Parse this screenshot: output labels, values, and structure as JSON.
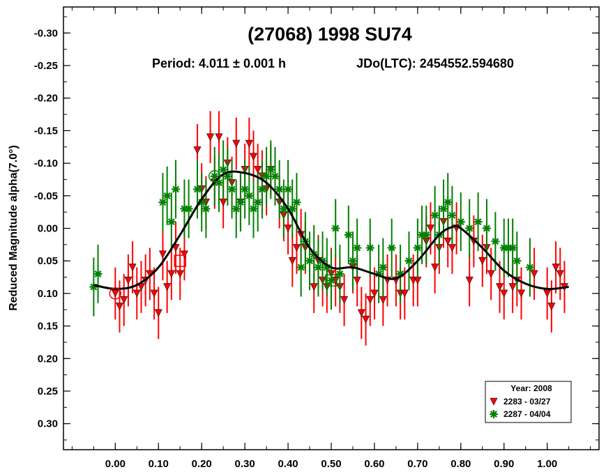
{
  "chart_data": {
    "type": "scatter",
    "title": "(27068) 1998 SU74",
    "subtitle_period": "Period: 4.011 ± 0.001 h",
    "subtitle_epoch": "JDo(LTC): 2454552.594680",
    "xlabel": "",
    "ylabel": "Reduced Magnitude alpha(7.0°)",
    "xlim": [
      -0.12,
      1.12
    ],
    "ylim": [
      0.34,
      -0.34
    ],
    "y_inverted": true,
    "x_ticks": [
      0.0,
      0.1,
      0.2,
      0.3,
      0.4,
      0.5,
      0.6,
      0.7,
      0.8,
      0.9,
      1.0
    ],
    "x_tick_labels": [
      "0.00",
      "0.10",
      "0.20",
      "0.30",
      "0.40",
      "0.50",
      "0.60",
      "0.70",
      "0.80",
      "0.90",
      "1.00"
    ],
    "y_ticks": [
      -0.3,
      -0.25,
      -0.2,
      -0.15,
      -0.1,
      -0.05,
      0.0,
      0.05,
      0.1,
      0.15,
      0.2,
      0.25,
      0.3
    ],
    "y_tick_labels": [
      "-0.30",
      "-0.25",
      "-0.20",
      "-0.15",
      "-0.10",
      "-0.05",
      "0.00",
      "0.05",
      "0.10",
      "0.15",
      "0.20",
      "0.25",
      "0.30"
    ],
    "grid": false,
    "legend": {
      "placement": "bottom-right",
      "title": "Year: 2008",
      "entries": [
        "2283 - 03/27",
        "2287 - 04/04"
      ]
    },
    "series": [
      {
        "name": "2283 - 03/27",
        "marker": "triangle-down",
        "color": "#ff0000",
        "err": 0.04,
        "points": [
          [
            0.0,
            0.1
          ],
          [
            0.01,
            0.12
          ],
          [
            0.02,
            0.11
          ],
          [
            0.03,
            0.08
          ],
          [
            0.04,
            0.06
          ],
          [
            0.05,
            0.1
          ],
          [
            0.06,
            0.09
          ],
          [
            0.07,
            0.08
          ],
          [
            0.08,
            0.07
          ],
          [
            0.09,
            0.1
          ],
          [
            0.1,
            0.13
          ],
          [
            0.11,
            0.04
          ],
          [
            0.12,
            0.09
          ],
          [
            0.13,
            0.07
          ],
          [
            0.14,
            0.03
          ],
          [
            0.15,
            0.07
          ],
          [
            0.16,
            0.04
          ],
          [
            0.19,
            -0.12
          ],
          [
            0.2,
            -0.06
          ],
          [
            0.21,
            -0.04
          ],
          [
            0.22,
            -0.14
          ],
          [
            0.23,
            -0.07
          ],
          [
            0.24,
            -0.14
          ],
          [
            0.25,
            -0.04
          ],
          [
            0.26,
            -0.1
          ],
          [
            0.27,
            -0.07
          ],
          [
            0.28,
            -0.13
          ],
          [
            0.29,
            -0.04
          ],
          [
            0.3,
            -0.09
          ],
          [
            0.31,
            -0.13
          ],
          [
            0.32,
            -0.11
          ],
          [
            0.33,
            -0.09
          ],
          [
            0.34,
            -0.08
          ],
          [
            0.35,
            -0.06
          ],
          [
            0.36,
            -0.09
          ],
          [
            0.38,
            -0.04
          ],
          [
            0.39,
            -0.02
          ],
          [
            0.4,
            0.0
          ],
          [
            0.41,
            0.05
          ],
          [
            0.42,
            0.03
          ],
          [
            0.43,
            0.01
          ],
          [
            0.44,
            0.03
          ],
          [
            0.46,
            0.09
          ],
          [
            0.47,
            0.05
          ],
          [
            0.48,
            0.08
          ],
          [
            0.49,
            0.09
          ],
          [
            0.5,
            0.07
          ],
          [
            0.51,
            0.08
          ],
          [
            0.52,
            0.09
          ],
          [
            0.53,
            0.11
          ],
          [
            0.55,
            0.06
          ],
          [
            0.56,
            0.08
          ],
          [
            0.57,
            0.13
          ],
          [
            0.58,
            0.14
          ],
          [
            0.59,
            0.11
          ],
          [
            0.6,
            0.1
          ],
          [
            0.62,
            0.11
          ],
          [
            0.63,
            0.08
          ],
          [
            0.65,
            0.08
          ],
          [
            0.66,
            0.1
          ],
          [
            0.67,
            0.1
          ],
          [
            0.69,
            0.08
          ],
          [
            0.7,
            0.08
          ],
          [
            0.72,
            0.02
          ],
          [
            0.73,
            0.0
          ],
          [
            0.74,
            0.06
          ],
          [
            0.75,
            0.03
          ],
          [
            0.76,
            -0.01
          ],
          [
            0.77,
            0.02
          ],
          [
            0.78,
            0.03
          ],
          [
            0.79,
            0.0
          ],
          [
            0.82,
            0.08
          ],
          [
            0.83,
            0.02
          ],
          [
            0.85,
            0.05
          ],
          [
            0.86,
            0.03
          ],
          [
            0.87,
            0.07
          ],
          [
            0.89,
            0.09
          ],
          [
            0.9,
            0.1
          ],
          [
            0.92,
            0.09
          ],
          [
            0.93,
            0.08
          ],
          [
            0.94,
            0.1
          ],
          [
            0.97,
            0.07
          ],
          [
            1.0,
            0.1
          ],
          [
            1.01,
            0.12
          ],
          [
            1.02,
            0.06
          ],
          [
            1.03,
            0.07
          ],
          [
            1.04,
            0.09
          ]
        ]
      },
      {
        "name": "2287 - 04/04",
        "marker": "asterisk",
        "color": "#008000",
        "err": 0.045,
        "points": [
          [
            -0.05,
            0.09
          ],
          [
            -0.04,
            0.07
          ],
          [
            0.11,
            -0.04
          ],
          [
            0.12,
            -0.05
          ],
          [
            0.13,
            -0.01
          ],
          [
            0.14,
            -0.06
          ],
          [
            0.16,
            -0.03
          ],
          [
            0.17,
            -0.03
          ],
          [
            0.19,
            -0.06
          ],
          [
            0.2,
            -0.04
          ],
          [
            0.21,
            -0.03
          ],
          [
            0.23,
            -0.08
          ],
          [
            0.24,
            -0.07
          ],
          [
            0.25,
            -0.09
          ],
          [
            0.26,
            -0.08
          ],
          [
            0.27,
            -0.06
          ],
          [
            0.28,
            -0.03
          ],
          [
            0.29,
            -0.04
          ],
          [
            0.3,
            -0.06
          ],
          [
            0.31,
            -0.05
          ],
          [
            0.32,
            -0.03
          ],
          [
            0.33,
            -0.04
          ],
          [
            0.34,
            -0.06
          ],
          [
            0.35,
            -0.08
          ],
          [
            0.36,
            -0.09
          ],
          [
            0.37,
            -0.08
          ],
          [
            0.38,
            -0.06
          ],
          [
            0.39,
            -0.03
          ],
          [
            0.4,
            -0.06
          ],
          [
            0.41,
            -0.03
          ],
          [
            0.42,
            -0.04
          ],
          [
            0.43,
            0.06
          ],
          [
            0.44,
            0.02
          ],
          [
            0.45,
            0.05
          ],
          [
            0.46,
            0.04
          ],
          [
            0.47,
            0.06
          ],
          [
            0.48,
            0.05
          ],
          [
            0.49,
            0.06
          ],
          [
            0.5,
            0.08
          ],
          [
            0.51,
            0.0
          ],
          [
            0.52,
            0.07
          ],
          [
            0.54,
            0.01
          ],
          [
            0.55,
            0.05
          ],
          [
            0.56,
            0.03
          ],
          [
            0.59,
            0.03
          ],
          [
            0.61,
            0.07
          ],
          [
            0.62,
            0.06
          ],
          [
            0.64,
            0.03
          ],
          [
            0.66,
            0.07
          ],
          [
            0.68,
            0.05
          ],
          [
            0.7,
            0.03
          ],
          [
            0.71,
            0.01
          ],
          [
            0.72,
            0.01
          ],
          [
            0.74,
            -0.02
          ],
          [
            0.75,
            0.01
          ],
          [
            0.76,
            -0.03
          ],
          [
            0.77,
            -0.04
          ],
          [
            0.78,
            -0.02
          ],
          [
            0.8,
            -0.01
          ],
          [
            0.82,
            0.0
          ],
          [
            0.84,
            -0.01
          ],
          [
            0.86,
            0.0
          ],
          [
            0.88,
            0.02
          ],
          [
            0.9,
            0.03
          ],
          [
            0.91,
            0.03
          ],
          [
            0.92,
            0.03
          ],
          [
            0.93,
            0.05
          ],
          [
            0.96,
            0.06
          ]
        ]
      }
    ],
    "fit_curve": {
      "color": "#000000",
      "points": [
        [
          -0.05,
          0.087
        ],
        [
          0.0,
          0.093
        ],
        [
          0.05,
          0.087
        ],
        [
          0.1,
          0.06
        ],
        [
          0.15,
          0.01
        ],
        [
          0.2,
          -0.045
        ],
        [
          0.25,
          -0.083
        ],
        [
          0.3,
          -0.085
        ],
        [
          0.35,
          -0.07
        ],
        [
          0.4,
          -0.03
        ],
        [
          0.45,
          0.03
        ],
        [
          0.5,
          0.06
        ],
        [
          0.55,
          0.06
        ],
        [
          0.6,
          0.07
        ],
        [
          0.65,
          0.077
        ],
        [
          0.7,
          0.05
        ],
        [
          0.75,
          0.01
        ],
        [
          0.78,
          -0.002
        ],
        [
          0.8,
          0.0
        ],
        [
          0.85,
          0.03
        ],
        [
          0.9,
          0.065
        ],
        [
          0.95,
          0.085
        ],
        [
          1.0,
          0.093
        ],
        [
          1.05,
          0.09
        ]
      ]
    },
    "special_markers": [
      {
        "shape": "circle",
        "color": "#ff0000",
        "x": 0.0,
        "y": 0.1
      },
      {
        "shape": "circle",
        "color": "#008000",
        "x": 0.23,
        "y": -0.08
      },
      {
        "shape": "square",
        "color": "#ff0000",
        "x": 0.15,
        "y": 0.05
      },
      {
        "shape": "square",
        "color": "#008000",
        "x": 0.5,
        "y": 0.08
      }
    ]
  }
}
